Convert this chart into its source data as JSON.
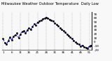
{
  "title": "Milwaukee Weather Outdoor Temperature  Daily Low",
  "title_fontsize": 3.8,
  "background_color": "#f8f8f8",
  "line_color_blue": "#0000ee",
  "line_color_black": "#111111",
  "ylim": [
    -20,
    75
  ],
  "yticks": [
    -20,
    -10,
    0,
    10,
    20,
    30,
    40,
    50,
    60,
    70
  ],
  "ylabel_fontsize": 3.2,
  "xlabel_fontsize": 3.0,
  "values": [
    8,
    -2,
    -5,
    3,
    12,
    5,
    14,
    18,
    22,
    10,
    20,
    26,
    28,
    22,
    30,
    35,
    32,
    38,
    45,
    42,
    50,
    52,
    55,
    58,
    60,
    62,
    60,
    57,
    55,
    52,
    48,
    44,
    40,
    36,
    32,
    28,
    24,
    20,
    16,
    12,
    8,
    4,
    0,
    -3,
    -6,
    -10,
    -8,
    -12,
    -14,
    -16,
    -10,
    -8
  ]
}
